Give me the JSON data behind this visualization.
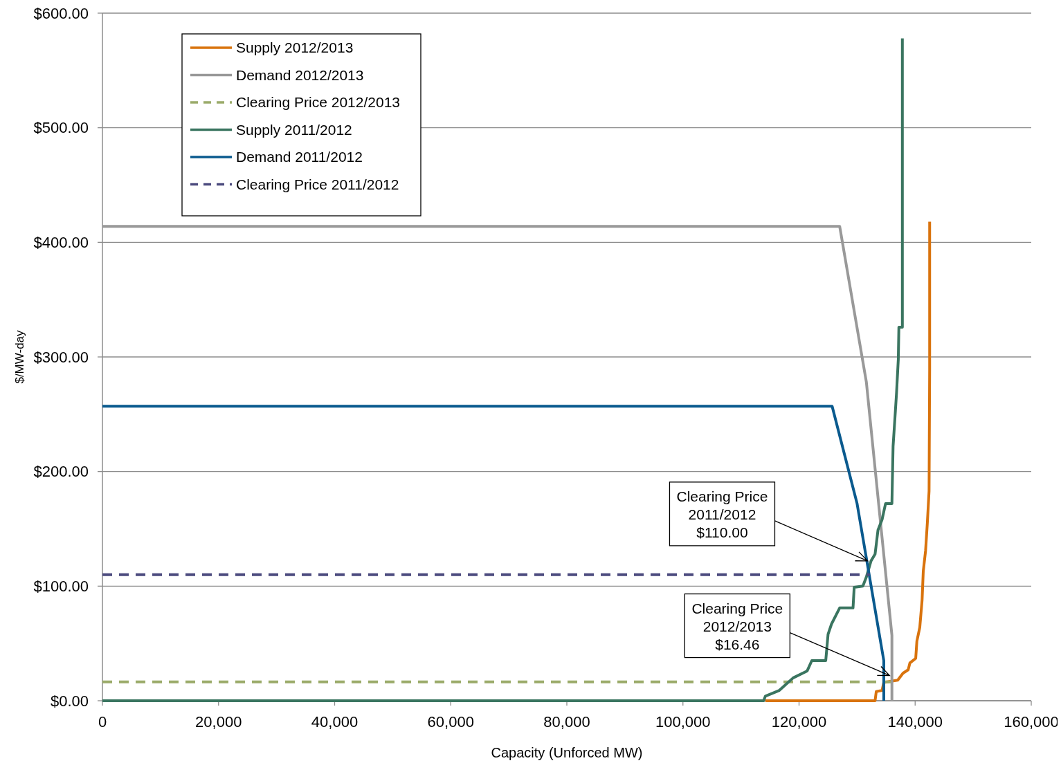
{
  "chart_data": {
    "type": "line",
    "xlabel": "Capacity (Unforced MW)",
    "ylabel": "$/MW-day",
    "xlim": [
      0,
      160000
    ],
    "ylim": [
      0,
      600
    ],
    "xticks": [
      0,
      {
        "value": 20000,
        "label": "20,000"
      },
      {
        "value": 40000,
        "label": "40,000"
      },
      {
        "value": 60000,
        "label": "60,000"
      },
      {
        "value": 80000,
        "label": "80,000"
      },
      {
        "value": 100000,
        "label": "100,000"
      },
      {
        "value": 120000,
        "label": "120,000"
      },
      {
        "value": 140000,
        "label": "140,000"
      },
      {
        "value": 160000,
        "label": "160,000"
      }
    ],
    "yticks": [
      {
        "value": 0,
        "label": "$0.00"
      },
      {
        "value": 100,
        "label": "$100.00"
      },
      {
        "value": 200,
        "label": "$200.00"
      },
      {
        "value": 300,
        "label": "$300.00"
      },
      {
        "value": 400,
        "label": "$400.00"
      },
      {
        "value": 500,
        "label": "$500.00"
      },
      {
        "value": 600,
        "label": "$600.00"
      }
    ],
    "grid": "y",
    "legend": "top left",
    "marker": "none",
    "series": [
      {
        "name": "Supply 2012/2013",
        "color": "#d9730d",
        "line_style": "solid",
        "x": [
          114200,
          133100,
          133300,
          134300,
          134600,
          137000,
          137900,
          138800,
          139100,
          140100,
          140300,
          140800,
          141200,
          141400,
          141800,
          142100,
          142400,
          142500,
          142500
        ],
        "values": [
          0,
          0,
          8,
          9,
          16,
          18,
          24,
          27,
          33,
          37,
          52,
          64,
          88,
          113,
          131,
          155,
          183,
          289,
          418
        ]
      },
      {
        "name": "Demand 2012/2013",
        "color": "#999999",
        "line_style": "solid",
        "x": [
          0,
          127000,
          131600,
          136000,
          136000
        ],
        "values": [
          414,
          414,
          278,
          57,
          0
        ]
      },
      {
        "name": "Clearing Price 2012/2013",
        "color": "#9bab6a",
        "line_style": "dashed",
        "x": [
          0,
          135800
        ],
        "values": [
          16.46,
          16.46
        ]
      },
      {
        "name": "Supply 2011/2012",
        "color": "#3a7560",
        "line_style": "solid",
        "x": [
          0,
          113900,
          114200,
          116600,
          119000,
          121400,
          122200,
          124600,
          125000,
          125600,
          127000,
          129300,
          129500,
          131000,
          131600,
          132400,
          133100,
          133600,
          134300,
          134900,
          136000,
          136200,
          136600,
          136800,
          137100,
          137200,
          137800,
          137800
        ],
        "values": [
          0,
          0,
          4,
          9,
          20,
          26,
          35,
          35,
          58,
          67,
          81,
          81,
          99,
          100,
          108,
          122,
          128,
          149,
          158,
          172,
          172,
          222,
          253,
          269,
          298,
          326,
          326,
          578
        ]
      },
      {
        "name": "Demand 2011/2012",
        "color": "#0a5a8e",
        "line_style": "solid",
        "x": [
          0,
          125700,
          130000,
          134600,
          134600
        ],
        "values": [
          257,
          257,
          172,
          35,
          0
        ]
      },
      {
        "name": "Clearing Price 2011/2012",
        "color": "#4b4a7e",
        "line_style": "dashed",
        "x": [
          0,
          132200
        ],
        "values": [
          110,
          110
        ]
      }
    ],
    "annotations": [
      {
        "text": "Clearing Price\n2011/2012\n$110.00",
        "x": 131800,
        "y": 122
      },
      {
        "text": "Clearing Price\n2012/2013\n$16.46",
        "x": 135600,
        "y": 22
      }
    ]
  }
}
